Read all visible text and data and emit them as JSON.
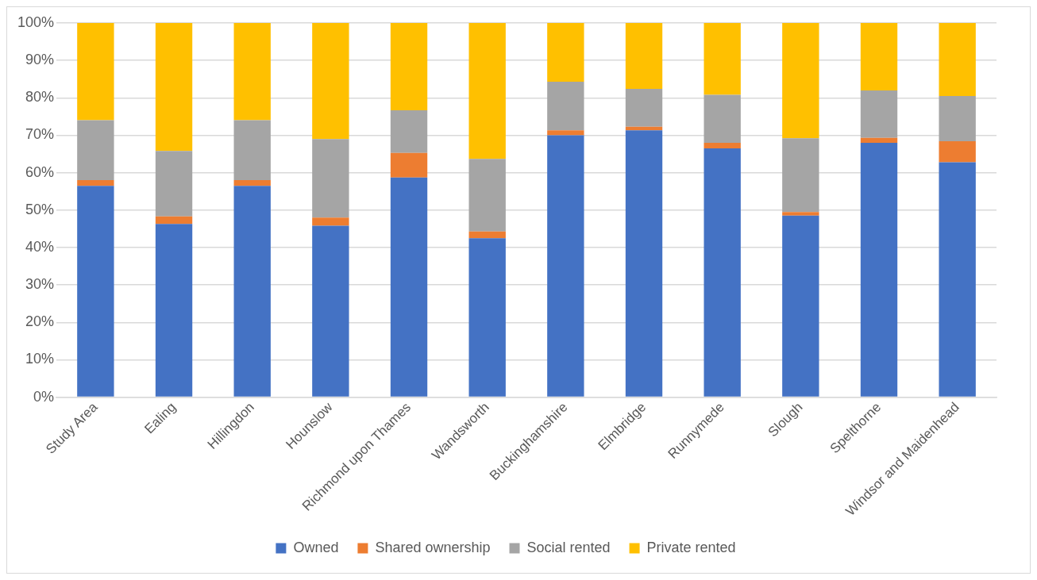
{
  "chart_data": {
    "type": "bar",
    "stacked": true,
    "categories": [
      "Study Area",
      "Ealing",
      "Hillingdon",
      "Hounslow",
      "Richmond upon Thames",
      "Wandsworth",
      "Buckinghamshire",
      "Elmbridge",
      "Runnymede",
      "Slough",
      "Spelthorne",
      "Windsor and Maidenhead"
    ],
    "series": [
      {
        "name": "Owned",
        "color": "#4472c4",
        "values": [
          56.5,
          46.3,
          56.5,
          45.8,
          58.7,
          42.5,
          70,
          71.3,
          66.5,
          48.5,
          68,
          62.8
        ]
      },
      {
        "name": "Shared ownership",
        "color": "#ed7d31",
        "values": [
          1.5,
          2,
          1.5,
          2.2,
          6.6,
          1.8,
          1.3,
          1,
          1.5,
          1,
          1.3,
          5.6
        ]
      },
      {
        "name": "Social rented",
        "color": "#a5a5a5",
        "values": [
          16,
          17.5,
          16,
          21,
          11.4,
          19.4,
          13,
          10.1,
          12.8,
          19.7,
          12.7,
          12.1
        ]
      },
      {
        "name": "Private rented",
        "color": "#ffc000",
        "values": [
          26,
          34.2,
          26,
          31,
          23.3,
          36.3,
          15.7,
          17.6,
          19.2,
          30.8,
          18,
          19.5
        ]
      }
    ],
    "ylim": [
      0,
      100
    ],
    "yticks": [
      {
        "value": 0,
        "label": "0%"
      },
      {
        "value": 10,
        "label": "10%"
      },
      {
        "value": 20,
        "label": "20%"
      },
      {
        "value": 30,
        "label": "30%"
      },
      {
        "value": 40,
        "label": "40%"
      },
      {
        "value": 50,
        "label": "50%"
      },
      {
        "value": 60,
        "label": "60%"
      },
      {
        "value": 70,
        "label": "70%"
      },
      {
        "value": 80,
        "label": "80%"
      },
      {
        "value": 90,
        "label": "90%"
      },
      {
        "value": 100,
        "label": "100%"
      }
    ],
    "grid": "y",
    "legend": "bottom"
  }
}
